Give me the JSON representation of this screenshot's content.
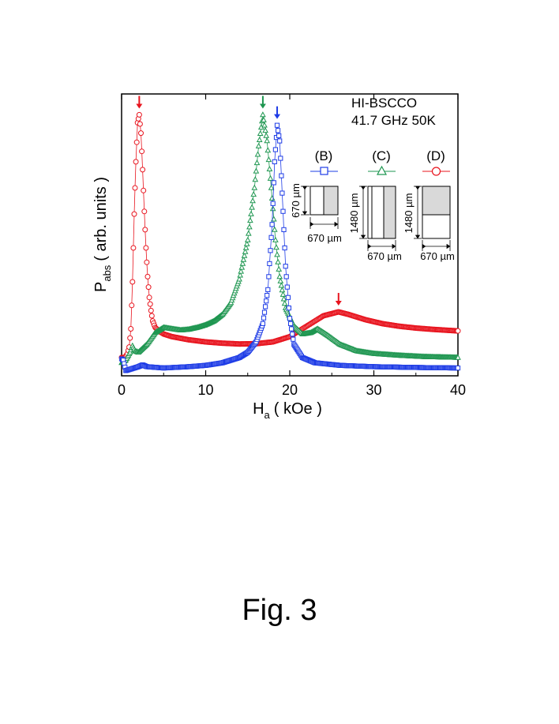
{
  "chart_data": {
    "type": "scatter",
    "xlabel": "H",
    "xlabel_sub": "a",
    "xlabel_unit": "( kOe )",
    "ylabel": "P",
    "ylabel_sub": "abs",
    "ylabel_unit": "( arb. units )",
    "xlim": [
      0,
      40
    ],
    "ylim": [
      0,
      1.08
    ],
    "x_ticks": [
      0,
      10,
      20,
      30,
      40
    ],
    "x_tick_labels": [
      "0",
      "10",
      "20",
      "30",
      "40"
    ],
    "y_tick_labels_shown": false,
    "grid": false,
    "annotation": {
      "line1": "HI-BSCCO",
      "line2": "41.7 GHz 50K"
    },
    "series": [
      {
        "name": "(D)",
        "color": "#e8141e",
        "marker": "circle",
        "peak_x": 2.1,
        "second_peak_x": 25.8,
        "points": [
          [
            0.0,
            0.07
          ],
          [
            0.3,
            0.07
          ],
          [
            0.5,
            0.075
          ],
          [
            0.7,
            0.085
          ],
          [
            0.9,
            0.11
          ],
          [
            1.1,
            0.18
          ],
          [
            1.3,
            0.36
          ],
          [
            1.5,
            0.62
          ],
          [
            1.7,
            0.82
          ],
          [
            1.9,
            0.97
          ],
          [
            2.1,
            1.0
          ],
          [
            2.3,
            0.93
          ],
          [
            2.5,
            0.79
          ],
          [
            2.7,
            0.63
          ],
          [
            2.9,
            0.49
          ],
          [
            3.1,
            0.38
          ],
          [
            3.3,
            0.3
          ],
          [
            3.5,
            0.25
          ],
          [
            3.7,
            0.21
          ],
          [
            4.0,
            0.185
          ],
          [
            4.5,
            0.17
          ],
          [
            5.0,
            0.16
          ],
          [
            6.0,
            0.15
          ],
          [
            8.0,
            0.138
          ],
          [
            10.0,
            0.13
          ],
          [
            12.0,
            0.125
          ],
          [
            14.0,
            0.122
          ],
          [
            16.0,
            0.123
          ],
          [
            18.0,
            0.13
          ],
          [
            20.0,
            0.15
          ],
          [
            22.0,
            0.19
          ],
          [
            24.0,
            0.23
          ],
          [
            25.8,
            0.245
          ],
          [
            27.0,
            0.235
          ],
          [
            29.0,
            0.215
          ],
          [
            31.0,
            0.2
          ],
          [
            33.0,
            0.19
          ],
          [
            35.0,
            0.183
          ],
          [
            37.0,
            0.178
          ],
          [
            40.0,
            0.172
          ]
        ]
      },
      {
        "name": "(C)",
        "color": "#1e9650",
        "marker": "triangle",
        "peak_x": 16.8,
        "points": [
          [
            0.0,
            0.05
          ],
          [
            0.5,
            0.06
          ],
          [
            1.0,
            0.09
          ],
          [
            1.3,
            0.115
          ],
          [
            1.6,
            0.095
          ],
          [
            2.0,
            0.09
          ],
          [
            3.0,
            0.12
          ],
          [
            4.0,
            0.165
          ],
          [
            5.0,
            0.185
          ],
          [
            6.0,
            0.18
          ],
          [
            7.0,
            0.175
          ],
          [
            8.0,
            0.178
          ],
          [
            9.0,
            0.185
          ],
          [
            10.0,
            0.195
          ],
          [
            11.0,
            0.21
          ],
          [
            12.0,
            0.235
          ],
          [
            13.0,
            0.28
          ],
          [
            14.0,
            0.37
          ],
          [
            15.0,
            0.52
          ],
          [
            15.8,
            0.72
          ],
          [
            16.3,
            0.88
          ],
          [
            16.8,
            1.0
          ],
          [
            17.3,
            0.9
          ],
          [
            17.8,
            0.72
          ],
          [
            18.3,
            0.52
          ],
          [
            18.8,
            0.38
          ],
          [
            19.5,
            0.26
          ],
          [
            20.5,
            0.19
          ],
          [
            21.5,
            0.16
          ],
          [
            22.5,
            0.165
          ],
          [
            23.3,
            0.18
          ],
          [
            24.5,
            0.155
          ],
          [
            26.0,
            0.12
          ],
          [
            28.0,
            0.095
          ],
          [
            30.0,
            0.085
          ],
          [
            33.0,
            0.078
          ],
          [
            36.0,
            0.073
          ],
          [
            40.0,
            0.07
          ]
        ]
      },
      {
        "name": "(B)",
        "color": "#1e3ce6",
        "marker": "square",
        "peak_x": 18.5,
        "points": [
          [
            0.0,
            0.065
          ],
          [
            0.2,
            0.06
          ],
          [
            0.5,
            0.02
          ],
          [
            1.0,
            0.025
          ],
          [
            2.0,
            0.035
          ],
          [
            2.5,
            0.042
          ],
          [
            3.0,
            0.035
          ],
          [
            5.0,
            0.03
          ],
          [
            8.0,
            0.035
          ],
          [
            10.0,
            0.04
          ],
          [
            12.0,
            0.05
          ],
          [
            14.0,
            0.07
          ],
          [
            15.0,
            0.09
          ],
          [
            16.0,
            0.13
          ],
          [
            16.8,
            0.2
          ],
          [
            17.4,
            0.33
          ],
          [
            17.9,
            0.58
          ],
          [
            18.2,
            0.82
          ],
          [
            18.5,
            0.96
          ],
          [
            18.8,
            0.9
          ],
          [
            19.1,
            0.7
          ],
          [
            19.5,
            0.42
          ],
          [
            20.0,
            0.22
          ],
          [
            20.5,
            0.12
          ],
          [
            21.5,
            0.07
          ],
          [
            23.0,
            0.05
          ],
          [
            26.0,
            0.04
          ],
          [
            30.0,
            0.035
          ],
          [
            35.0,
            0.032
          ],
          [
            40.0,
            0.03
          ]
        ]
      }
    ],
    "arrows": [
      {
        "series": "(D)",
        "x": 2.1,
        "y": 1.0
      },
      {
        "series": "(C)",
        "x": 16.8,
        "y": 1.0
      },
      {
        "series": "(B)",
        "x": 18.5,
        "y": 0.96
      },
      {
        "series": "(D)",
        "x": 25.8,
        "y": 0.245
      }
    ],
    "insets": [
      {
        "label": "(B)",
        "height_label": "670 µm",
        "width_label": "670 µm"
      },
      {
        "label": "(C)",
        "height_label": "1480 µm",
        "width_label": "670 µm"
      },
      {
        "label": "(D)",
        "height_label": "1480 µm",
        "width_label": "670 µm"
      }
    ]
  },
  "figure": {
    "caption": "Fig. 3"
  }
}
